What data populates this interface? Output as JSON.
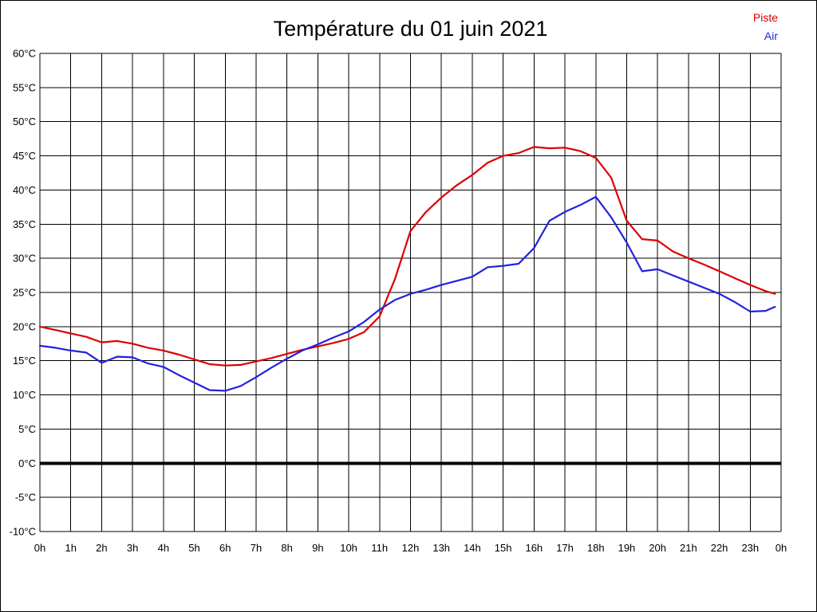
{
  "title": "Température du 01 juin 2021",
  "legend": {
    "piste": {
      "label": "Piste",
      "color": "#dd0000"
    },
    "air": {
      "label": "Air",
      "color": "#2222dd"
    }
  },
  "chart_data": {
    "type": "line",
    "title": "Température du 01 juin 2021",
    "xlabel": "",
    "ylabel": "",
    "x_unit": "hours",
    "xlim": [
      0,
      24
    ],
    "ylim": [
      -10,
      60
    ],
    "grid": true,
    "zero_line_bold": true,
    "legend_position": "top-right",
    "x_tick_labels": [
      "0h",
      "1h",
      "2h",
      "3h",
      "4h",
      "5h",
      "6h",
      "7h",
      "8h",
      "9h",
      "10h",
      "11h",
      "12h",
      "13h",
      "14h",
      "15h",
      "16h",
      "17h",
      "18h",
      "19h",
      "20h",
      "21h",
      "22h",
      "23h",
      "0h"
    ],
    "y_ticks": [
      60,
      55,
      50,
      45,
      40,
      35,
      30,
      25,
      20,
      15,
      10,
      5,
      0,
      -5,
      -10
    ],
    "y_tick_labels": [
      "60°C",
      "55°C",
      "50°C",
      "45°C",
      "40°C",
      "35°C",
      "30°C",
      "25°C",
      "20°C",
      "15°C",
      "10°C",
      "5°C",
      "0°C",
      "-5°C",
      "-10°C"
    ],
    "x": [
      0,
      0.5,
      1,
      1.5,
      2,
      2.5,
      3,
      3.5,
      4,
      4.5,
      5,
      5.5,
      6,
      6.5,
      7,
      7.5,
      8,
      8.5,
      9,
      9.5,
      10,
      10.5,
      11,
      11.5,
      12,
      12.5,
      13,
      13.5,
      14,
      14.5,
      15,
      15.5,
      16,
      16.5,
      17,
      17.5,
      18,
      18.5,
      19,
      19.5,
      20,
      20.5,
      21,
      21.5,
      22,
      22.5,
      23,
      23.5,
      23.8
    ],
    "series": [
      {
        "name": "Piste",
        "color": "#dd0000",
        "values": [
          20.0,
          19.5,
          19.0,
          18.5,
          17.7,
          17.9,
          17.5,
          16.9,
          16.5,
          15.9,
          15.2,
          14.5,
          14.3,
          14.4,
          14.9,
          15.4,
          16.0,
          16.6,
          17.1,
          17.6,
          18.2,
          19.2,
          21.5,
          27.0,
          34.0,
          36.8,
          38.9,
          40.7,
          42.2,
          44.0,
          45.0,
          45.4,
          46.3,
          46.1,
          46.2,
          45.7,
          44.7,
          41.8,
          35.5,
          32.8,
          32.6,
          31.0,
          30.0,
          29.1,
          28.1,
          27.1,
          26.1,
          25.2,
          24.8
        ]
      },
      {
        "name": "Air",
        "color": "#2222dd",
        "values": [
          17.2,
          16.9,
          16.5,
          16.2,
          14.7,
          15.6,
          15.5,
          14.6,
          14.1,
          12.9,
          11.8,
          10.7,
          10.6,
          11.3,
          12.6,
          14.0,
          15.3,
          16.5,
          17.4,
          18.4,
          19.3,
          20.7,
          22.5,
          23.9,
          24.8,
          25.4,
          26.1,
          26.7,
          27.3,
          28.7,
          28.9,
          29.2,
          31.5,
          35.5,
          36.8,
          37.8,
          39.0,
          36.0,
          32.3,
          28.1,
          28.4,
          27.5,
          26.6,
          25.7,
          24.8,
          23.6,
          22.2,
          22.3,
          22.9
        ]
      }
    ]
  }
}
